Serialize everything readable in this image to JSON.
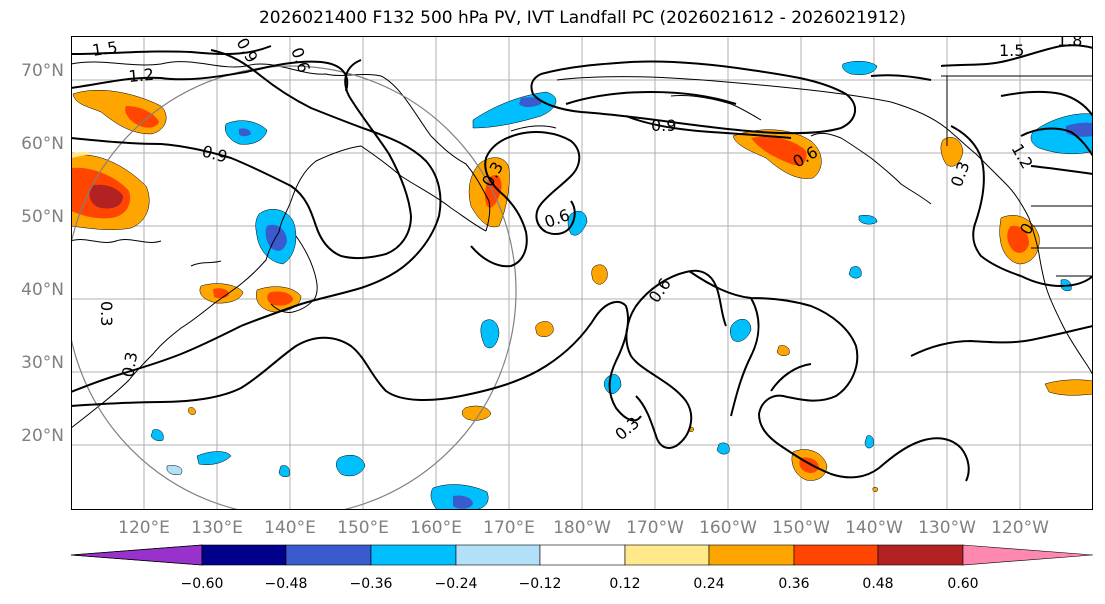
{
  "title": "2026021400 F132 500 hPa PV, IVT Landfall PC (2026021612 - 2026021912)",
  "lat_labels": [
    "70°N",
    "60°N",
    "50°N",
    "40°N",
    "30°N",
    "20°N"
  ],
  "lon_labels": [
    "120°E",
    "130°E",
    "140°E",
    "150°E",
    "160°E",
    "170°E",
    "180°W",
    "170°W",
    "160°W",
    "150°W",
    "140°W",
    "130°W",
    "120°W"
  ],
  "contour_labels": [
    "1.5",
    "1.2",
    "0.9",
    "0.9",
    "0.9",
    "0.6",
    "0.6",
    "0.6",
    "0.6",
    "0.3",
    "0.3",
    "0.3",
    "0.3",
    "0.3",
    "1.2",
    "1.5",
    "1.8",
    "0"
  ],
  "colorbar": {
    "ticks": [
      "−0.60",
      "−0.48",
      "−0.36",
      "−0.24",
      "−0.12",
      "0.12",
      "0.24",
      "0.36",
      "0.48",
      "0.60"
    ],
    "colors": [
      "#9932cc",
      "#00008b",
      "#3a5bcd",
      "#00bfff",
      "#b2e0f9",
      "#ffffff",
      "#ffe98a",
      "#ffa500",
      "#ff4500",
      "#b22222",
      "#ff88b0"
    ]
  },
  "shading_colors": {
    "orange": "#ffa500",
    "red_orange": "#ff4500",
    "dark_red": "#b22222",
    "light_yellow": "#ffe98a",
    "cyan": "#00bfff",
    "light_blue": "#b2e0f9",
    "blue": "#3a5bcd"
  }
}
